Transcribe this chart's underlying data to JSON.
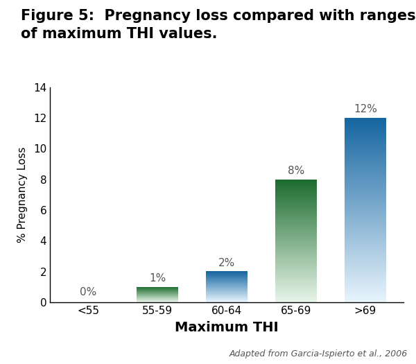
{
  "categories": [
    "<55",
    "55-59",
    "60-64",
    "65-69",
    ">69"
  ],
  "values": [
    0,
    1,
    2,
    8,
    12
  ],
  "labels": [
    "0%",
    "1%",
    "2%",
    "8%",
    "12%"
  ],
  "title_line1": "Figure 5:  Pregnancy loss compared with ranges",
  "title_line2": "of maximum THI values.",
  "xlabel": "Maximum THI",
  "ylabel": "% Pregnancy Loss",
  "ylim": [
    0,
    14
  ],
  "yticks": [
    0,
    2,
    4,
    6,
    8,
    10,
    12,
    14
  ],
  "attribution": "Adapted from Garcia-Ispierto et al., 2006",
  "bar_gradient_types": [
    "green",
    "green",
    "blue",
    "green",
    "blue"
  ],
  "green_top": "#1b6b2e",
  "green_bottom": "#e8f5e9",
  "blue_top": "#1565a0",
  "blue_bottom": "#e8f4fc",
  "background_color": "#ffffff",
  "title_fontsize": 15,
  "label_fontsize": 11,
  "tick_fontsize": 11,
  "xlabel_fontsize": 14,
  "ylabel_fontsize": 11,
  "bar_width": 0.6,
  "label_color": "#555555"
}
